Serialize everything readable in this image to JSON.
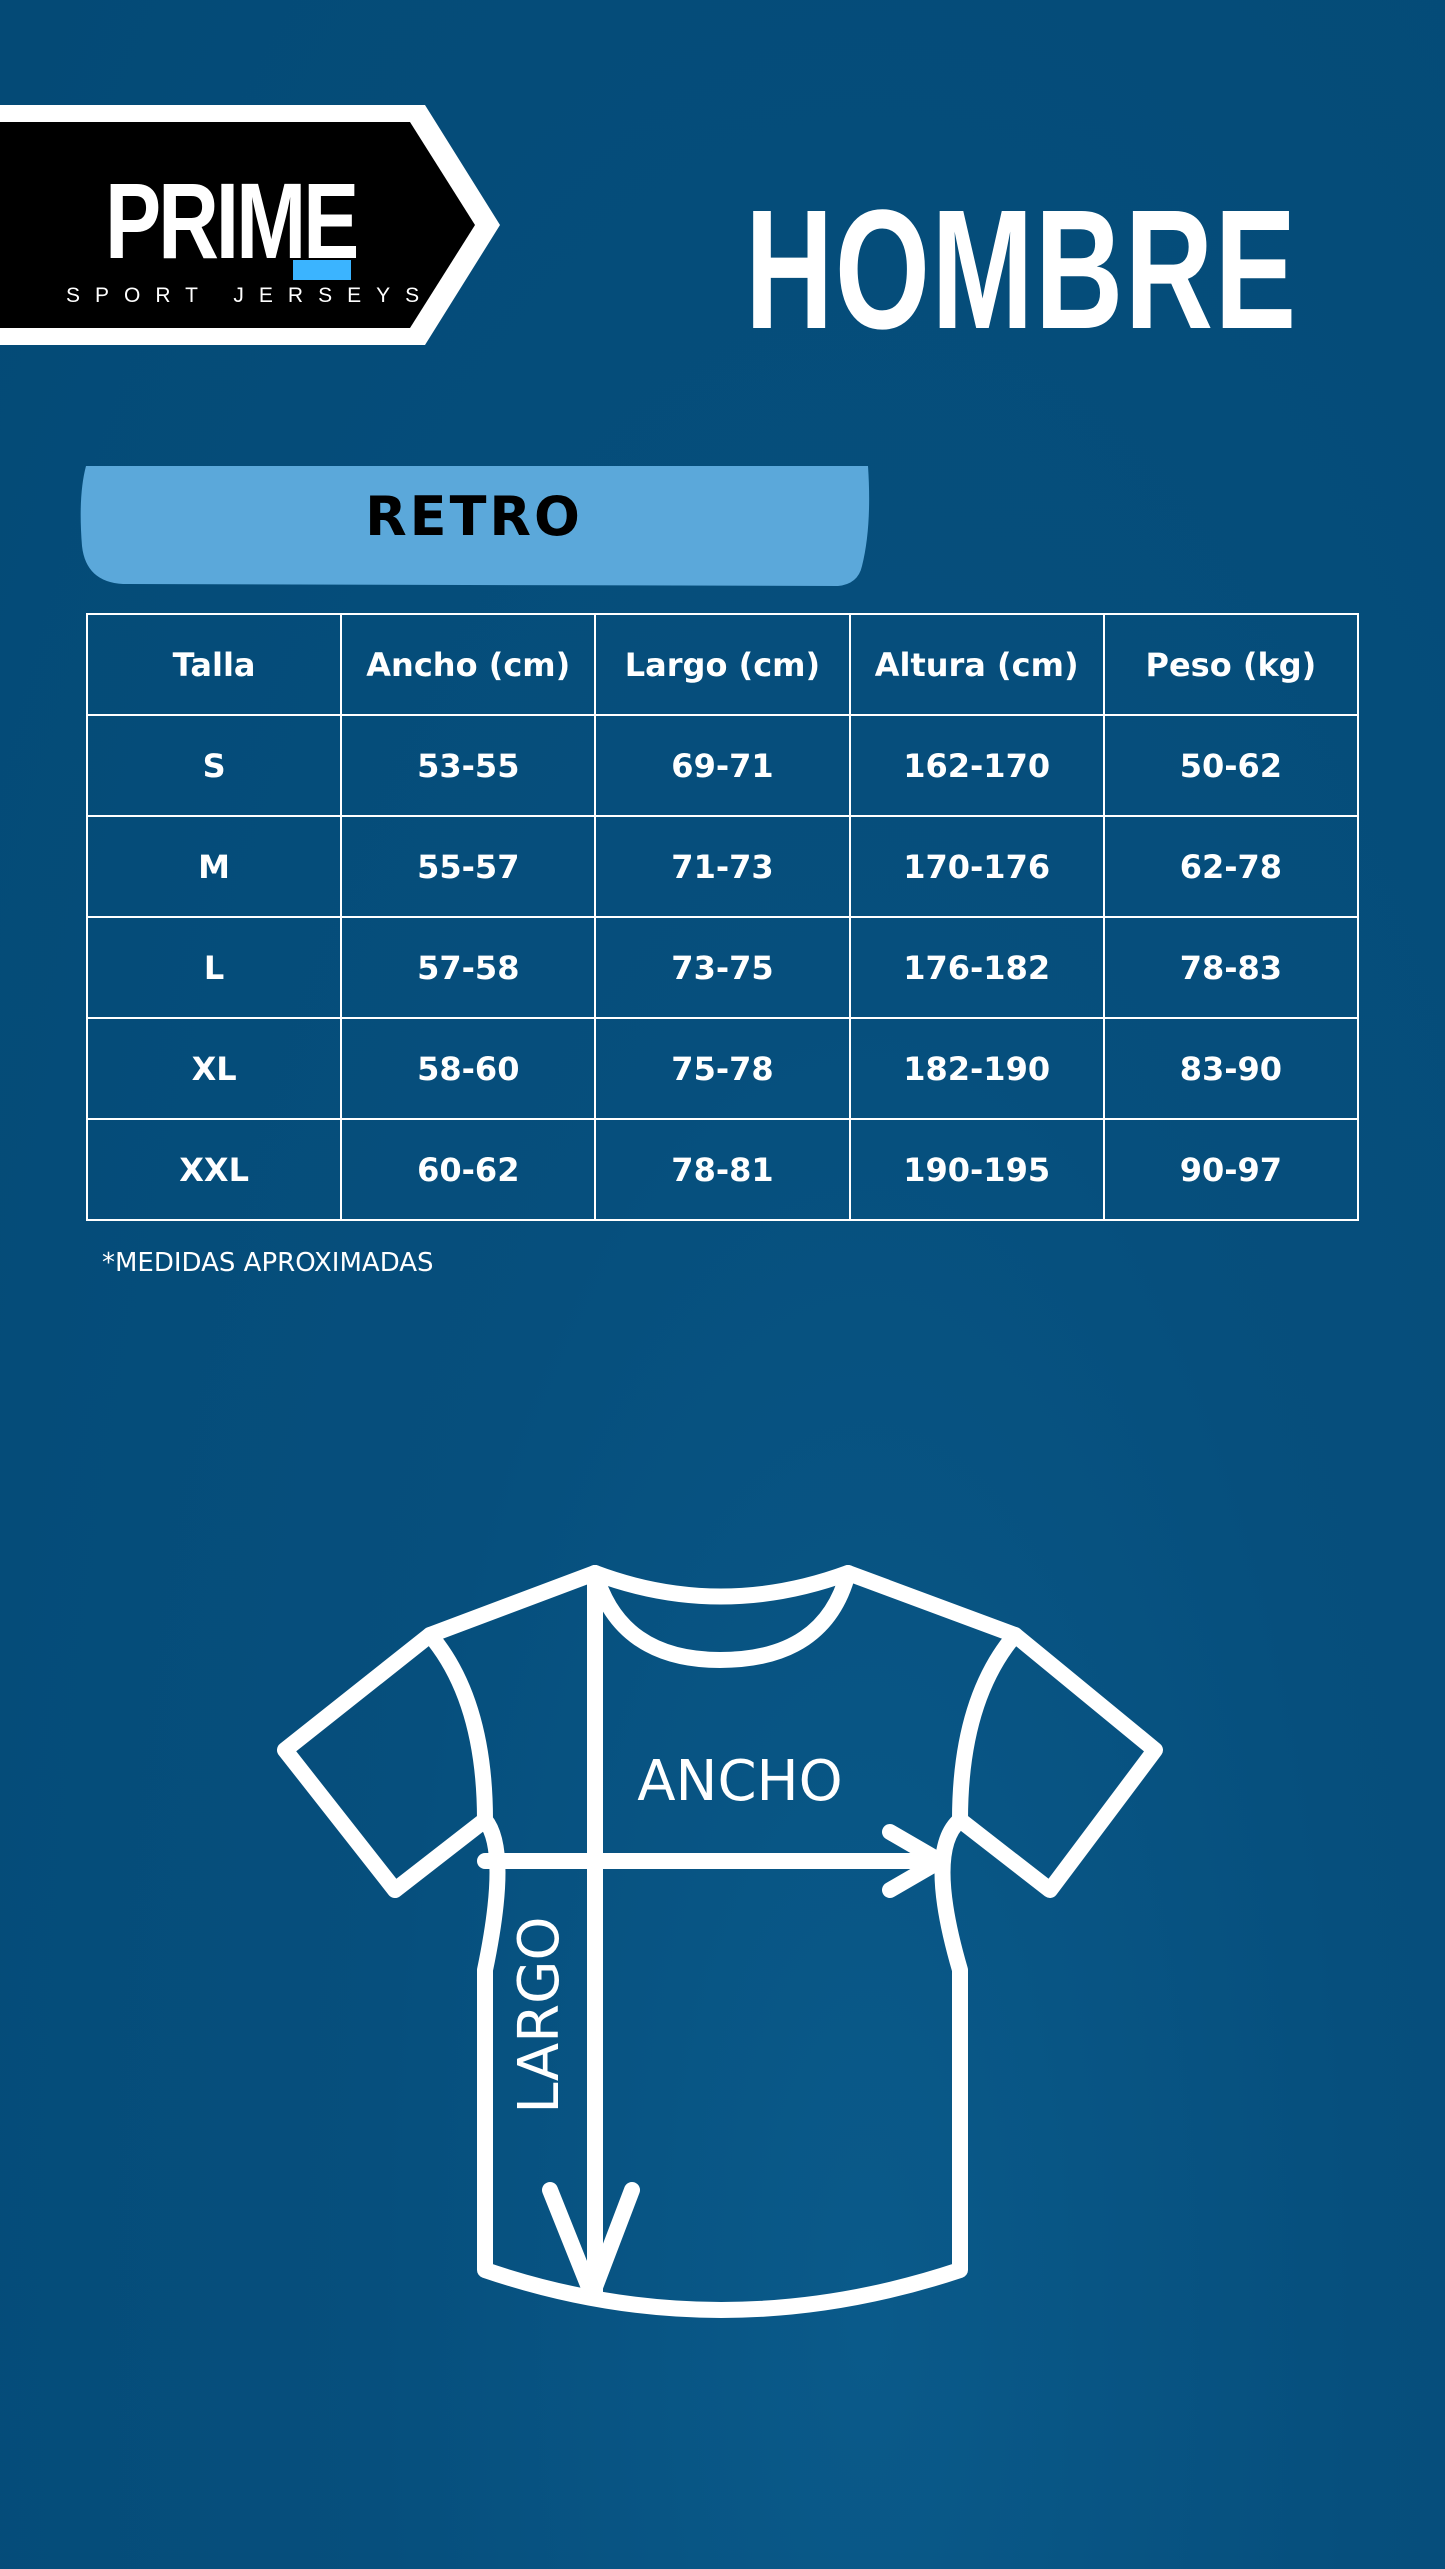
{
  "logo": {
    "word": "PRIME",
    "subtitle": "SPORT JERSEYS",
    "accent": "#3bb4ff"
  },
  "title": "HOMBRE",
  "section": {
    "label": "RETRO",
    "color": "#5ba8da"
  },
  "table": {
    "headers": [
      "Talla",
      "Ancho (cm)",
      "Largo (cm)",
      "Altura (cm)",
      "Peso (kg)"
    ],
    "rows": [
      [
        "S",
        "53-55",
        "69-71",
        "162-170",
        "50-62"
      ],
      [
        "M",
        "55-57",
        "71-73",
        "170-176",
        "62-78"
      ],
      [
        "L",
        "57-58",
        "73-75",
        "176-182",
        "78-83"
      ],
      [
        "XL",
        "58-60",
        "75-78",
        "182-190",
        "83-90"
      ],
      [
        "XXL",
        "60-62",
        "78-81",
        "190-195",
        "90-97"
      ]
    ]
  },
  "note": "*MEDIDAS APROXIMADAS",
  "diagram": {
    "width_label": "ANCHO",
    "length_label": "LARGO"
  },
  "colors": {
    "background": "#054d7c",
    "text": "#ffffff"
  }
}
